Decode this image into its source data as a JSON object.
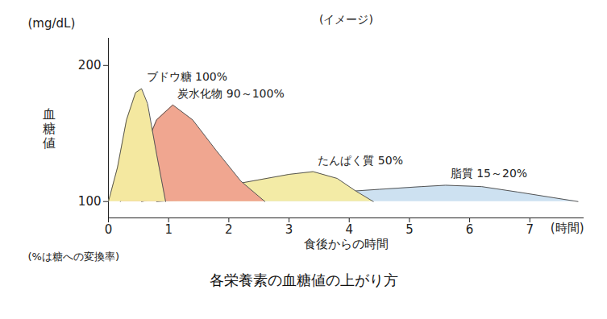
{
  "chart_data": {
    "type": "area",
    "title": "各栄養素の血糖値の上がり方",
    "subtitle": "(イメージ)",
    "xlabel": "食後からの時間",
    "xunit": "(時間)",
    "ylabel": "血糖値",
    "yunit": "(mg/dL)",
    "note": "(%は糖への変換率)",
    "xlim": [
      0,
      7.9
    ],
    "xticks": [
      0,
      1,
      2,
      3,
      4,
      5,
      6,
      7
    ],
    "ylim": [
      88,
      220
    ],
    "yticks": [
      100,
      200
    ],
    "grid": false,
    "series": [
      {
        "name": "ブドウ糖 100%",
        "color": "#f4e8a0",
        "x": [
          0,
          0.15,
          0.3,
          0.45,
          0.55,
          0.65,
          0.8,
          0.95
        ],
        "values": [
          100,
          125,
          160,
          180,
          183,
          172,
          135,
          100
        ]
      },
      {
        "name": "炭水化物 90～100%",
        "color": "#f0a690",
        "x": [
          0.2,
          0.5,
          0.8,
          1.07,
          1.4,
          1.8,
          2.2,
          2.6
        ],
        "values": [
          100,
          128,
          160,
          171,
          160,
          137,
          115,
          100
        ]
      },
      {
        "name": "たんぱく質 50%",
        "color": "#f3eba6",
        "x": [
          0.55,
          1,
          1.5,
          2,
          2.5,
          3,
          3.4,
          3.8,
          4.1,
          4.4
        ],
        "values": [
          100,
          104,
          108,
          112,
          116,
          120,
          122,
          117,
          108,
          100
        ]
      },
      {
        "name": "脂質 15～20%",
        "color": "#cde1f1",
        "x": [
          0.8,
          1.5,
          2.5,
          3.5,
          4.5,
          5.2,
          5.6,
          6.2,
          6.8,
          7.8
        ],
        "values": [
          100,
          102,
          104,
          106,
          109,
          111,
          112,
          111,
          107,
          100
        ]
      }
    ]
  }
}
